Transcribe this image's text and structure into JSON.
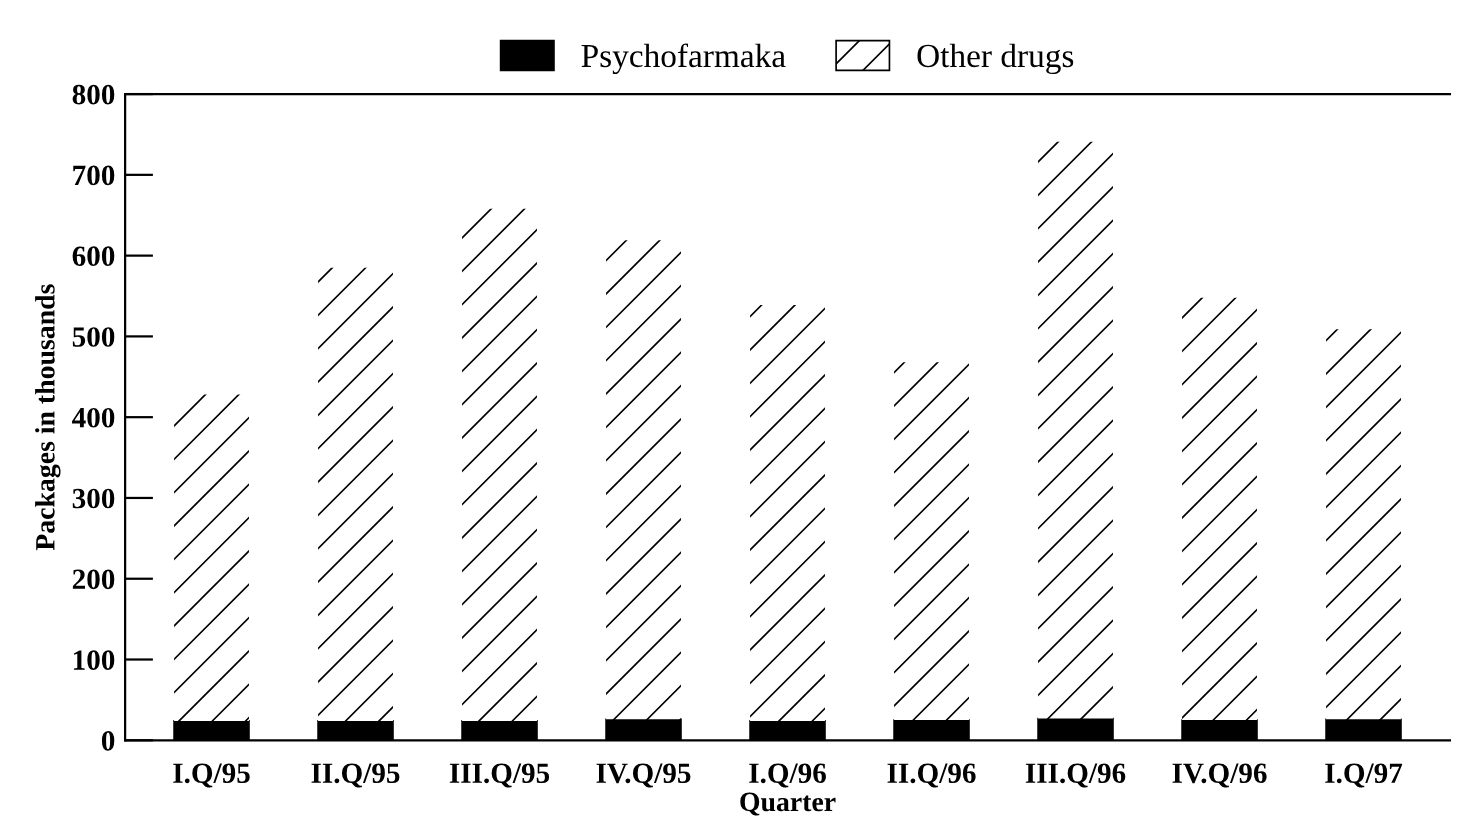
{
  "chart_data": {
    "type": "bar",
    "stacked": true,
    "xlabel": "Quarter",
    "ylabel": "Packages in thousands",
    "categories": [
      "I.Q/95",
      "II.Q/95",
      "III.Q/95",
      "IV.Q/95",
      "I.Q/96",
      "II.Q/96",
      "III.Q/96",
      "IV.Q/96",
      "I.Q/97"
    ],
    "series": [
      {
        "name": "Psychofarmaka",
        "color": "#000000",
        "values": [
          24,
          24,
          24,
          26,
          24,
          25,
          27,
          25,
          26
        ]
      },
      {
        "name": "Other drugs",
        "color": "#ffffff",
        "values": [
          404,
          561,
          634,
          593,
          515,
          443,
          714,
          523,
          483
        ]
      }
    ],
    "ylim": [
      0,
      800
    ],
    "yticks": [
      0,
      100,
      200,
      300,
      400,
      500,
      600,
      700,
      800
    ],
    "grid": false,
    "legend": "top"
  }
}
